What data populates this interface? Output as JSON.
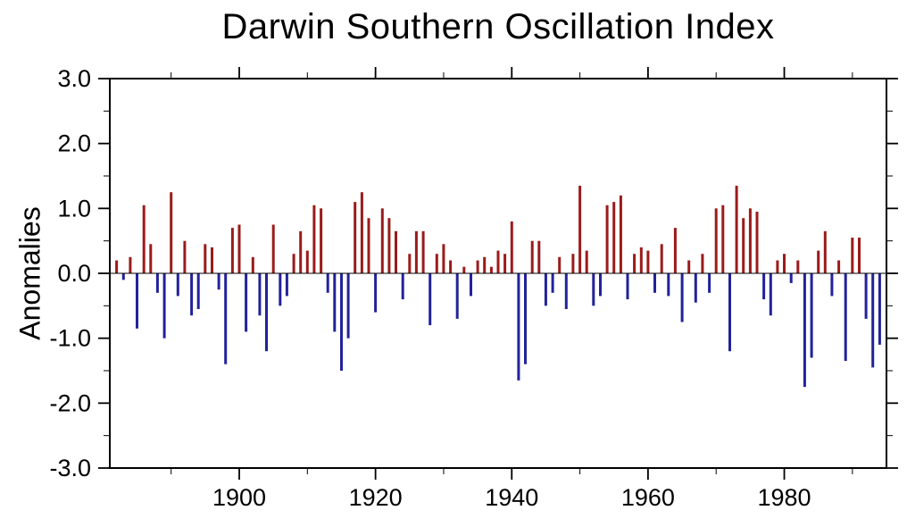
{
  "title": "Darwin Southern Oscillation Index",
  "y_axis": {
    "label": "Anomalies",
    "tick_labels": [
      "3.0",
      "2.0",
      "1.0",
      "0.0",
      "-1.0",
      "-2.0",
      "-3.0"
    ],
    "tick_values": [
      3,
      2,
      1,
      0,
      -1,
      -2,
      -3
    ]
  },
  "x_axis": {
    "tick_labels": [
      "1900",
      "1920",
      "1940",
      "1960",
      "1980"
    ],
    "tick_values": [
      1900,
      1920,
      1940,
      1960,
      1980
    ]
  },
  "colors": {
    "positive_bar": "#9B1B1B",
    "negative_bar": "#22229B",
    "axis": "#000000",
    "background": "#FFFFFF"
  },
  "chart_data": {
    "type": "bar",
    "title": "Darwin Southern Oscillation Index",
    "ylabel": "Anomalies",
    "xlabel": "",
    "ylim": [
      -3.0,
      3.0
    ],
    "xlim": [
      1881,
      1995
    ],
    "grid": false,
    "legend": "none",
    "x_minor_tick_step_years": 10,
    "y_minor_tick_step": 0.5,
    "start_year": 1882,
    "values": [
      0.2,
      -0.1,
      0.25,
      -0.85,
      1.05,
      0.45,
      -0.3,
      -1.0,
      1.25,
      -0.35,
      0.5,
      -0.65,
      -0.55,
      0.45,
      0.4,
      -0.25,
      -1.4,
      0.7,
      0.75,
      -0.9,
      0.25,
      -0.65,
      -1.2,
      0.75,
      -0.5,
      -0.35,
      0.3,
      0.65,
      0.35,
      1.05,
      1.0,
      -0.3,
      -0.9,
      -1.5,
      -1.0,
      1.1,
      1.25,
      0.85,
      -0.6,
      1.0,
      0.85,
      0.65,
      -0.4,
      0.3,
      0.65,
      0.65,
      -0.8,
      0.3,
      0.45,
      0.2,
      -0.7,
      0.1,
      -0.35,
      0.2,
      0.25,
      0.1,
      0.35,
      0.3,
      0.8,
      -1.65,
      -1.4,
      0.5,
      0.5,
      -0.5,
      -0.3,
      0.25,
      -0.55,
      0.3,
      1.35,
      0.35,
      -0.5,
      -0.35,
      1.05,
      1.1,
      1.2,
      -0.4,
      0.3,
      0.4,
      0.35,
      -0.3,
      0.45,
      -0.35,
      0.7,
      -0.75,
      0.2,
      -0.45,
      0.3,
      -0.3,
      1.0,
      1.05,
      -1.2,
      1.35,
      0.85,
      1.0,
      0.95,
      -0.4,
      -0.65,
      0.2,
      0.3,
      -0.15,
      0.2,
      -1.75,
      -1.3,
      0.35,
      0.65,
      -0.35,
      0.2,
      -1.35,
      0.55,
      0.55,
      -0.7,
      -1.45,
      -1.1
    ]
  }
}
